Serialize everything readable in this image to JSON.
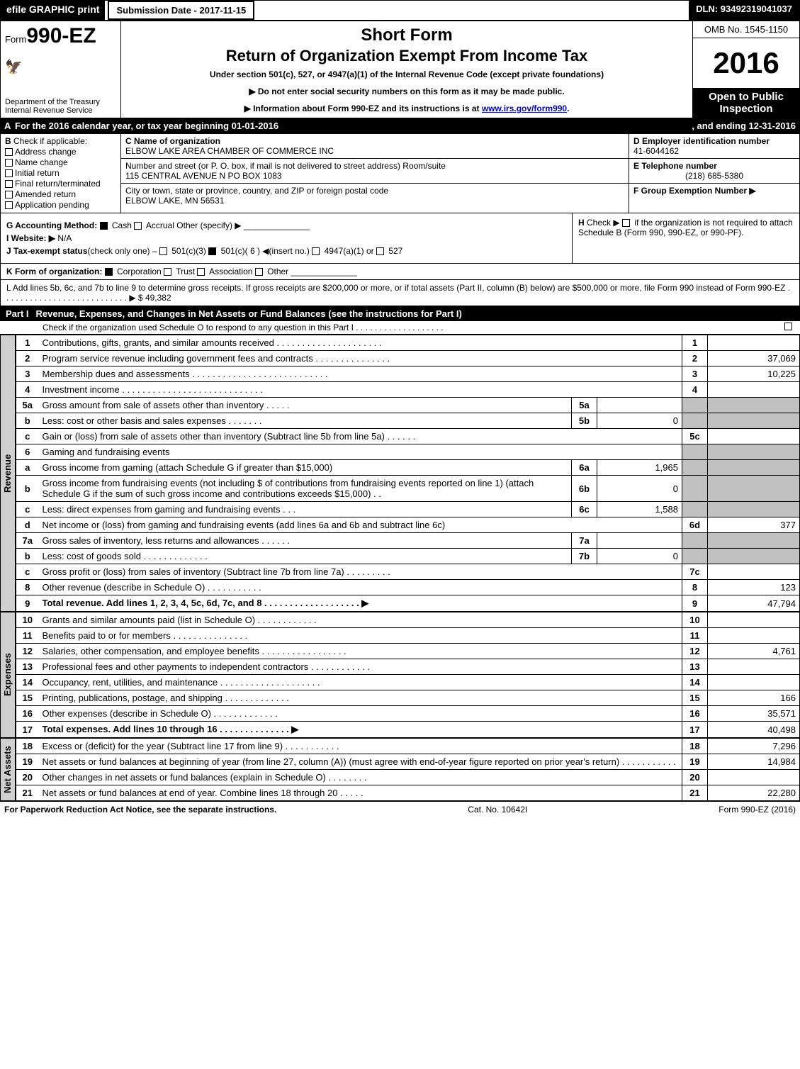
{
  "topbar": {
    "print": "efile GRAPHIC print",
    "submission": "Submission Date - 2017-11-15",
    "dln": "DLN: 93492319041037"
  },
  "header": {
    "form_prefix": "Form",
    "form_no": "990-EZ",
    "dept1": "Department of the Treasury",
    "dept2": "Internal Revenue Service",
    "short_form": "Short Form",
    "title": "Return of Organization Exempt From Income Tax",
    "under": "Under section 501(c), 527, or 4947(a)(1) of the Internal Revenue Code (except private foundations)",
    "note1": "▶ Do not enter social security numbers on this form as it may be made public.",
    "note2_pre": "▶ Information about Form 990-EZ and its instructions is at ",
    "note2_link": "www.irs.gov/form990",
    "omb": "OMB No. 1545-1150",
    "year": "2016",
    "open": "Open to Public Inspection"
  },
  "secA": {
    "label": "A",
    "text": "For the 2016 calendar year, or tax year beginning 01-01-2016",
    "end": ", and ending 12-31-2016"
  },
  "secB": {
    "hd": "B",
    "check": "Check if applicable:",
    "opts": [
      "Address change",
      "Name change",
      "Initial return",
      "Final return/terminated",
      "Amended return",
      "Application pending"
    ]
  },
  "secC": {
    "c_lbl": "C Name of organization",
    "c_val": "ELBOW LAKE AREA CHAMBER OF COMMERCE INC",
    "addr_lbl": "Number and street (or P. O. box, if mail is not delivered to street address)    Room/suite",
    "addr_val": "115 CENTRAL AVENUE N PO BOX 1083",
    "city_lbl": "City or town, state or province, country, and ZIP or foreign postal code",
    "city_val": "ELBOW LAKE, MN  56531"
  },
  "secD": {
    "d_lbl": "D Employer identification number",
    "d_val": "41-6044162",
    "e_lbl": "E Telephone number",
    "e_val": "(218) 685-5380",
    "f_lbl": "F Group Exemption Number   ▶"
  },
  "secGH": {
    "g_lbl": "G Accounting Method:",
    "g_cash": "Cash",
    "g_accr": "Accrual",
    "g_other": "Other (specify) ▶",
    "i_lbl": "I Website: ▶",
    "i_val": "N/A",
    "j_lbl": "J Tax-exempt status",
    "j_txt": "(check only one) –",
    "j_5013": "501(c)(3)",
    "j_501c": "501(c)( 6 ) ◀(insert no.)",
    "j_4947": "4947(a)(1) or",
    "j_527": "527",
    "h_lbl": "H",
    "h_txt1": "Check ▶",
    "h_txt2": "if the organization is not required to attach Schedule B (Form 990, 990-EZ, or 990-PF)."
  },
  "secK": {
    "k_lbl": "K Form of organization:",
    "k_corp": "Corporation",
    "k_trust": "Trust",
    "k_assoc": "Association",
    "k_other": "Other"
  },
  "secL": {
    "l_txt": "L Add lines 5b, 6c, and 7b to line 9 to determine gross receipts. If gross receipts are $200,000 or more, or if total assets (Part II, column (B) below) are $500,000 or more, file Form 990 instead of Form 990-EZ  .  .  .  .  .  .  .  .  .  .  .  .  .  .  .  .  .  .  .  .  .  .  .  .  .  .  .  ▶ $ 49,382"
  },
  "part1": {
    "label": "Part I",
    "title": "Revenue, Expenses, and Changes in Net Assets or Fund Balances (see the instructions for Part I)",
    "sub": "Check if the organization used Schedule O to respond to any question in this Part I .  .  .  .  .  .  .  .  .  .  .  .  .  .  .  .  .  .  ."
  },
  "sides": {
    "rev": "Revenue",
    "exp": "Expenses",
    "net": "Net Assets"
  },
  "lines": {
    "l1": {
      "n": "1",
      "d": "Contributions, gifts, grants, and similar amounts received  .  .  .  .  .  .  .  .  .  .  .  .  .  .  .  .  .  .  .  .  .",
      "ln": "1",
      "v": ""
    },
    "l2": {
      "n": "2",
      "d": "Program service revenue including government fees and contracts  .  .  .  .  .  .  .  .  .  .  .  .  .  .  .",
      "ln": "2",
      "v": "37,069"
    },
    "l3": {
      "n": "3",
      "d": "Membership dues and assessments  .  .  .  .  .  .  .  .  .  .  .  .  .  .  .  .  .  .  .  .  .  .  .  .  .  .  .",
      "ln": "3",
      "v": "10,225"
    },
    "l4": {
      "n": "4",
      "d": "Investment income  .  .  .  .  .  .  .  .  .  .  .  .  .  .  .  .  .  .  .  .  .  .  .  .  .  .  .  .",
      "ln": "4",
      "v": ""
    },
    "l5a": {
      "n": "5a",
      "d": "Gross amount from sale of assets other than inventory  .  .  .  .  .",
      "sn": "5a",
      "sv": ""
    },
    "l5b": {
      "n": "b",
      "d": "Less: cost or other basis and sales expenses  .  .  .  .  .  .  .",
      "sn": "5b",
      "sv": "0"
    },
    "l5c": {
      "n": "c",
      "d": "Gain or (loss) from sale of assets other than inventory (Subtract line 5b from line 5a) .  .  .  .  .  .",
      "ln": "5c",
      "v": ""
    },
    "l6": {
      "n": "6",
      "d": "Gaming and fundraising events"
    },
    "l6a": {
      "n": "a",
      "d": "Gross income from gaming (attach Schedule G if greater than $15,000)",
      "sn": "6a",
      "sv": "1,965"
    },
    "l6b": {
      "n": "b",
      "d": "Gross income from fundraising events (not including $                           of contributions from fundraising events reported on line 1) (attach Schedule G if the sum of such gross income and contributions exceeds $15,000)    .  .",
      "sn": "6b",
      "sv": "0"
    },
    "l6c": {
      "n": "c",
      "d": "Less: direct expenses from gaming and fundraising events         .  .  .",
      "sn": "6c",
      "sv": "1,588"
    },
    "l6d": {
      "n": "d",
      "d": "Net income or (loss) from gaming and fundraising events (add lines 6a and 6b and subtract line 6c)",
      "ln": "6d",
      "v": "377"
    },
    "l7a": {
      "n": "7a",
      "d": "Gross sales of inventory, less returns and allowances  .  .  .  .  .  .",
      "sn": "7a",
      "sv": ""
    },
    "l7b": {
      "n": "b",
      "d": "Less: cost of goods sold        .  .  .  .  .  .  .  .  .  .  .  .  .",
      "sn": "7b",
      "sv": "0"
    },
    "l7c": {
      "n": "c",
      "d": "Gross profit or (loss) from sales of inventory (Subtract line 7b from line 7a) .  .  .  .  .  .  .  .  .",
      "ln": "7c",
      "v": ""
    },
    "l8": {
      "n": "8",
      "d": "Other revenue (describe in Schedule O)              .  .  .  .  .  .  .  .  .  .  .",
      "ln": "8",
      "v": "123"
    },
    "l9": {
      "n": "9",
      "d": "Total revenue. Add lines 1, 2, 3, 4, 5c, 6d, 7c, and 8  .  .  .  .  .  .  .  .  .  .  .  .  .  .  .  .  .  .  .  ▶",
      "ln": "9",
      "v": "47,794"
    },
    "l10": {
      "n": "10",
      "d": "Grants and similar amounts paid (list in Schedule O)         .  .  .  .  .  .  .  .  .  .  .  .",
      "ln": "10",
      "v": ""
    },
    "l11": {
      "n": "11",
      "d": "Benefits paid to or for members            .  .  .  .  .  .  .  .  .  .  .  .  .  .  .",
      "ln": "11",
      "v": ""
    },
    "l12": {
      "n": "12",
      "d": "Salaries, other compensation, and employee benefits .  .  .  .  .  .  .  .  .  .  .  .  .  .  .  .  .",
      "ln": "12",
      "v": "4,761"
    },
    "l13": {
      "n": "13",
      "d": "Professional fees and other payments to independent contractors  .  .  .  .  .  .  .  .  .  .  .  .",
      "ln": "13",
      "v": ""
    },
    "l14": {
      "n": "14",
      "d": "Occupancy, rent, utilities, and maintenance .  .  .  .  .  .  .  .  .  .  .  .  .  .  .  .  .  .  .  .",
      "ln": "14",
      "v": ""
    },
    "l15": {
      "n": "15",
      "d": "Printing, publications, postage, and shipping          .  .  .  .  .  .  .  .  .  .  .  .  .",
      "ln": "15",
      "v": "166"
    },
    "l16": {
      "n": "16",
      "d": "Other expenses (describe in Schedule O)          .  .  .  .  .  .  .  .  .  .  .  .  .",
      "ln": "16",
      "v": "35,571"
    },
    "l17": {
      "n": "17",
      "d": "Total expenses. Add lines 10 through 16          .  .  .  .  .  .  .  .  .  .  .  .  .  .  ▶",
      "ln": "17",
      "v": "40,498"
    },
    "l18": {
      "n": "18",
      "d": "Excess or (deficit) for the year (Subtract line 17 from line 9)       .  .  .  .  .  .  .  .  .  .  .",
      "ln": "18",
      "v": "7,296"
    },
    "l19": {
      "n": "19",
      "d": "Net assets or fund balances at beginning of year (from line 27, column (A)) (must agree with end-of-year figure reported on prior year's return)            .  .  .  .  .  .  .  .  .  .  .",
      "ln": "19",
      "v": "14,984"
    },
    "l20": {
      "n": "20",
      "d": "Other changes in net assets or fund balances (explain in Schedule O)     .  .  .  .  .  .  .  .",
      "ln": "20",
      "v": ""
    },
    "l21": {
      "n": "21",
      "d": "Net assets or fund balances at end of year. Combine lines 18 through 20      .  .  .  .  .",
      "ln": "21",
      "v": "22,280"
    }
  },
  "footer": {
    "left": "For Paperwork Reduction Act Notice, see the separate instructions.",
    "mid": "Cat. No. 10642I",
    "right": "Form 990-EZ (2016)"
  },
  "colors": {
    "black": "#000000",
    "white": "#ffffff",
    "shade": "#c0c0c0",
    "link": "#0000cc"
  }
}
